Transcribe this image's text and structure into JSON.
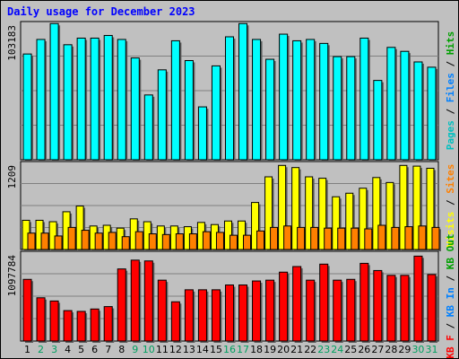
{
  "title": "Daily usage for December 2023",
  "colors": {
    "background": "#c0c0c0",
    "title": "#0000ff",
    "pages": "#00ffff",
    "files": "#0080ff",
    "hits": "#00c0c0",
    "sites": "#ff8000",
    "visits": "#ffff00",
    "kb_out": "#00a000",
    "kb_in": "#0080ff",
    "kb_f": "#ff0000",
    "weekday": "#000000",
    "weekend": "#00a060"
  },
  "chart_data": [
    {
      "type": "bar",
      "panel": "hits",
      "ymax_label": "103183",
      "ylim": [
        0,
        103183
      ],
      "legend": [
        {
          "text": "Pages",
          "color": "#00c0c0"
        },
        {
          "text": "Files",
          "color": "#0080ff"
        },
        {
          "text": "Hits",
          "color": "#00a000"
        }
      ],
      "categories": [
        "1",
        "2",
        "3",
        "4",
        "5",
        "6",
        "7",
        "8",
        "9",
        "10",
        "11",
        "12",
        "13",
        "14",
        "15",
        "16",
        "17",
        "18",
        "19",
        "20",
        "21",
        "22",
        "23",
        "24",
        "25",
        "26",
        "27",
        "28",
        "29",
        "30",
        "31"
      ],
      "series": [
        {
          "name": "Hits",
          "color": "#00ffff",
          "values": [
            80000,
            91000,
            103000,
            87000,
            92000,
            92000,
            94000,
            91000,
            77000,
            49000,
            68000,
            90000,
            75000,
            40000,
            71000,
            93000,
            103000,
            91000,
            76000,
            95000,
            90000,
            91000,
            88000,
            78000,
            78000,
            92000,
            60000,
            85000,
            82000,
            74000,
            70000
          ]
        }
      ]
    },
    {
      "type": "bar",
      "panel": "visits",
      "ymax_label": "1209",
      "ylim": [
        0,
        1209
      ],
      "legend": [
        {
          "text": "Visits",
          "color": "#ffff00"
        },
        {
          "text": "Sites",
          "color": "#ff8000"
        }
      ],
      "categories": [
        "1",
        "2",
        "3",
        "4",
        "5",
        "6",
        "7",
        "8",
        "9",
        "10",
        "11",
        "12",
        "13",
        "14",
        "15",
        "16",
        "17",
        "18",
        "19",
        "20",
        "21",
        "22",
        "23",
        "24",
        "25",
        "26",
        "27",
        "28",
        "29",
        "30",
        "31"
      ],
      "series": [
        {
          "name": "Visits",
          "color": "#ffff00",
          "values": [
            410,
            410,
            390,
            530,
            610,
            330,
            340,
            300,
            430,
            390,
            330,
            330,
            320,
            380,
            350,
            400,
            400,
            660,
            1020,
            1180,
            1150,
            1020,
            1000,
            740,
            790,
            860,
            1010,
            940,
            1180,
            1170,
            1140
          ]
        },
        {
          "name": "Sites",
          "color": "#ff8000",
          "values": [
            230,
            230,
            190,
            310,
            270,
            230,
            240,
            180,
            250,
            220,
            210,
            220,
            220,
            250,
            240,
            200,
            200,
            260,
            310,
            330,
            310,
            310,
            300,
            300,
            300,
            290,
            340,
            310,
            320,
            330,
            310
          ]
        }
      ]
    },
    {
      "type": "bar",
      "panel": "kbytes",
      "ymax_label": "1097784",
      "ylim": [
        0,
        1097784
      ],
      "legend": [
        {
          "text": "KB F",
          "color": "#ff0000"
        },
        {
          "text": "KB In",
          "color": "#0080ff"
        },
        {
          "text": "KB Out",
          "color": "#00a000"
        }
      ],
      "categories": [
        "1",
        "2",
        "3",
        "4",
        "5",
        "6",
        "7",
        "8",
        "9",
        "10",
        "11",
        "12",
        "13",
        "14",
        "15",
        "16",
        "17",
        "18",
        "19",
        "20",
        "21",
        "22",
        "23",
        "24",
        "25",
        "26",
        "27",
        "28",
        "29",
        "30",
        "31"
      ],
      "series": [
        {
          "name": "KB F",
          "color": "#ff0000",
          "values": [
            770000,
            540000,
            500000,
            380000,
            370000,
            400000,
            430000,
            900000,
            1010000,
            1000000,
            760000,
            490000,
            640000,
            640000,
            640000,
            700000,
            700000,
            750000,
            760000,
            860000,
            930000,
            760000,
            960000,
            760000,
            770000,
            970000,
            880000,
            820000,
            820000,
            1060000,
            830000
          ]
        }
      ]
    }
  ],
  "days": {
    "weekend": [
      "2",
      "3",
      "9",
      "10",
      "16",
      "17",
      "23",
      "24",
      "30",
      "31"
    ]
  }
}
